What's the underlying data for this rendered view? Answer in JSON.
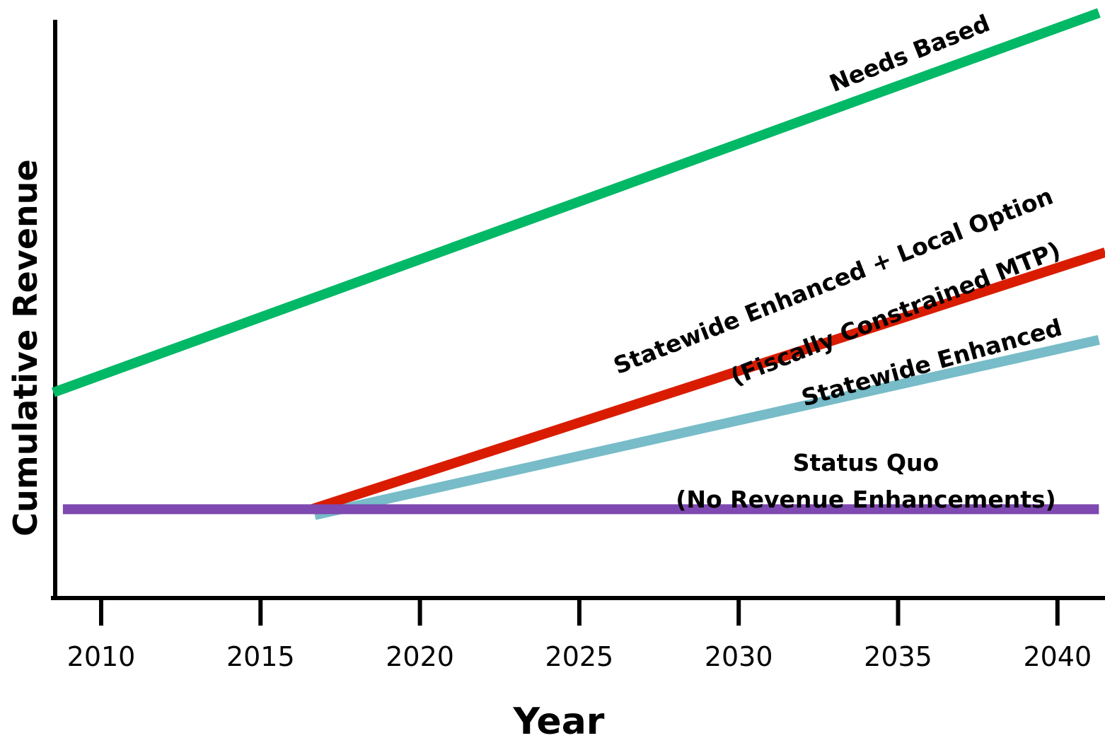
{
  "chart_data": {
    "type": "line",
    "title": "",
    "xlabel": "Year",
    "ylabel": "Cumulative Revenue",
    "xlim": [
      2008.5,
      2041.5
    ],
    "ylim": [
      0,
      100
    ],
    "x_ticks": [
      2010,
      2015,
      2020,
      2025,
      2030,
      2035,
      2040
    ],
    "x_tick_labels": [
      "2010",
      "2015",
      "2020",
      "2025",
      "2030",
      "2035",
      "2040"
    ],
    "y_ticks_shown": false,
    "grid": false,
    "legend": "none (direct labels on lines)",
    "series": [
      {
        "name": "Needs Based",
        "color": "#00b865",
        "points": [
          [
            2008.5,
            34
          ],
          [
            2041.3,
            99
          ]
        ]
      },
      {
        "name": "Statewide Enhanced + Local Option (Fiscally Constrained MTP)",
        "label_lines": [
          "Statewide Enhanced + Local Option",
          "(Fiscally Constrained MTP)"
        ],
        "color": "#d91c00",
        "points": [
          [
            2016.6,
            14
          ],
          [
            2041.5,
            58
          ]
        ]
      },
      {
        "name": "Statewide Enhanced",
        "color": "#77bcc8",
        "points": [
          [
            2016.7,
            13
          ],
          [
            2041.3,
            43
          ]
        ]
      },
      {
        "name": "Status Quo (No Revenue Enhancements)",
        "label_lines": [
          "Status Quo",
          "(No Revenue Enhancements)"
        ],
        "color": "#7e49b0",
        "points": [
          [
            2008.8,
            14
          ],
          [
            2041.3,
            14
          ]
        ]
      }
    ]
  }
}
